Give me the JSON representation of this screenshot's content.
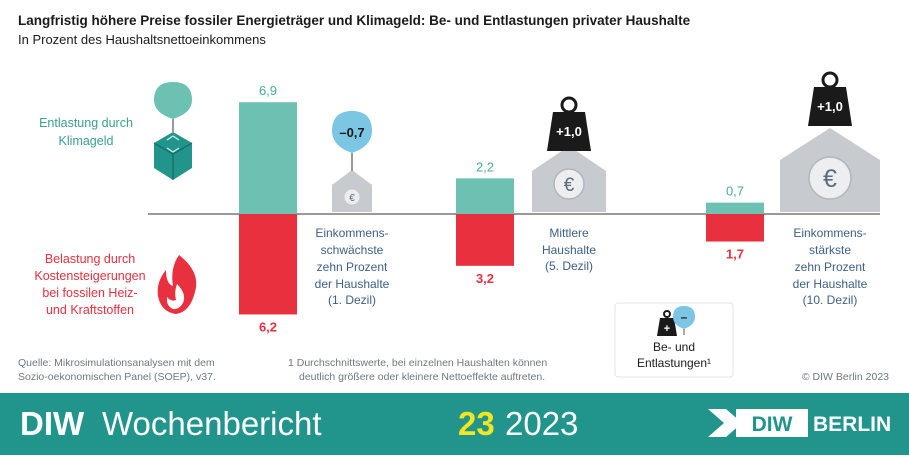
{
  "header": {
    "title": "Langfristig höhere Preise fossiler Energieträger und Klimageld: Be- und Entlastungen privater Haushalte",
    "subtitle": "In Prozent des Haushaltsnettoeinkommens"
  },
  "legend": {
    "relief_label": [
      "Entlastung durch",
      "Klimageld"
    ],
    "burden_label": [
      "Belastung durch",
      "Kostensteigerungen",
      "bei fossilen Heiz-",
      "und Kraftstoffen"
    ],
    "net_effect_label": [
      "Be- und",
      "Entlastungen¹"
    ]
  },
  "chart_data": {
    "type": "bar",
    "categories": [
      "1. Dezil",
      "5. Dezil",
      "10. Dezil"
    ],
    "category_labels": [
      [
        "Einkommens-",
        "schwächste",
        "zehn Prozent",
        "der Haushalte",
        "(1. Dezil)"
      ],
      [
        "Mittlere",
        "Haushalte",
        "(5. Dezil)"
      ],
      [
        "Einkommens-",
        "stärkste",
        "zehn Prozent",
        "der Haushalte",
        "(10. Dezil)"
      ]
    ],
    "series": [
      {
        "name": "Entlastung durch Klimageld",
        "values": [
          6.9,
          2.2,
          0.7
        ],
        "labels": [
          "6,9",
          "2,2",
          "0,7"
        ]
      },
      {
        "name": "Belastung durch Kostensteigerungen bei fossilen Heiz- und Kraftstoffen",
        "values": [
          -6.2,
          -3.2,
          -1.7
        ],
        "labels": [
          "6,2",
          "3,2",
          "1,7"
        ]
      }
    ],
    "net_effect": {
      "values": [
        -0.7,
        1.0,
        1.0
      ],
      "labels": [
        "–0,7",
        "+1,0",
        "+1,0"
      ]
    },
    "colors": {
      "relief": "#6cc1b2",
      "burden": "#e8303f",
      "text_relief": "#4aab99",
      "text_burden": "#e8303f",
      "text_category": "#3e5f86"
    }
  },
  "notes": {
    "source": [
      "Quelle: Mikrosimulationsanalysen mit dem",
      "Sozio-oekonomischen Panel (SOEP), v37."
    ],
    "footnote": [
      "1  Durchschnittswerte, bei einzelnen Haushalten können",
      "deutlich größere oder kleinere Nettoeffekte auftreten."
    ],
    "copyright": "© DIW Berlin 2023"
  },
  "footer": {
    "brand": "DIW",
    "publication": "Wochenbericht",
    "issue_number": "23",
    "year": "2023",
    "logo_text": "BERLIN",
    "logo_short": "DIW",
    "band_color": "#21948b"
  }
}
